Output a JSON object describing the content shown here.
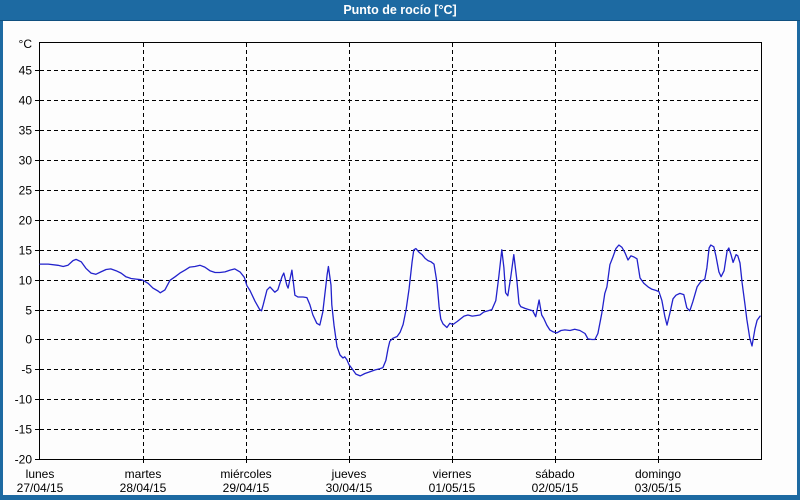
{
  "window": {
    "title": "Punto de rocío [°C]"
  },
  "colors": {
    "frame": "#1d6aa2",
    "titlebar_text": "#ffffff",
    "panel_background": "#fdfdfd",
    "grid": "#000000",
    "series_line": "#2222cc"
  },
  "chart_data": {
    "type": "line",
    "title": "Punto de rocío [°C]",
    "ylabel": "°C",
    "ylim": [
      -20,
      50
    ],
    "y_tick_step": 5,
    "y_ticks": [
      45,
      40,
      35,
      30,
      25,
      20,
      15,
      10,
      5,
      0,
      -5,
      -10,
      -15,
      -20
    ],
    "grid_style": "dashed-black",
    "legend": "none",
    "x_unit": "hours_from_monday_00:00",
    "x_range": [
      0,
      168
    ],
    "x_days": [
      {
        "name": "lunes",
        "date": "27/04/15"
      },
      {
        "name": "martes",
        "date": "28/04/15"
      },
      {
        "name": "miércoles",
        "date": "29/04/15"
      },
      {
        "name": "jueves",
        "date": "30/04/15"
      },
      {
        "name": "viernes",
        "date": "01/05/15"
      },
      {
        "name": "sábado",
        "date": "02/05/15"
      },
      {
        "name": "domingo",
        "date": "03/05/15"
      }
    ],
    "series": [
      {
        "name": "Punto de rocío",
        "color": "#2222cc",
        "points": [
          [
            0,
            12.6
          ],
          [
            1.9,
            12.6
          ],
          [
            4.2,
            12.4
          ],
          [
            5.4,
            12.2
          ],
          [
            6.5,
            12.4
          ],
          [
            7.7,
            13.2
          ],
          [
            8.4,
            13.4
          ],
          [
            9.6,
            13.0
          ],
          [
            10.7,
            11.9
          ],
          [
            11.9,
            11.1
          ],
          [
            13.0,
            10.9
          ],
          [
            14.2,
            11.3
          ],
          [
            15.4,
            11.7
          ],
          [
            16.5,
            11.8
          ],
          [
            17.7,
            11.5
          ],
          [
            18.9,
            11.1
          ],
          [
            20.0,
            10.5
          ],
          [
            21.2,
            10.2
          ],
          [
            22.4,
            10.1
          ],
          [
            23.5,
            10.0
          ],
          [
            24.0,
            9.9
          ],
          [
            25.2,
            9.4
          ],
          [
            26.3,
            8.6
          ],
          [
            27.5,
            8.1
          ],
          [
            28.0,
            7.8
          ],
          [
            29.1,
            8.3
          ],
          [
            30.3,
            9.9
          ],
          [
            31.5,
            10.5
          ],
          [
            32.6,
            11.1
          ],
          [
            33.8,
            11.6
          ],
          [
            34.9,
            12.1
          ],
          [
            36.1,
            12.2
          ],
          [
            37.3,
            12.4
          ],
          [
            38.4,
            12.1
          ],
          [
            39.6,
            11.5
          ],
          [
            40.8,
            11.2
          ],
          [
            41.9,
            11.2
          ],
          [
            43.1,
            11.3
          ],
          [
            44.3,
            11.6
          ],
          [
            45.4,
            11.8
          ],
          [
            46.6,
            11.3
          ],
          [
            47.6,
            10.4
          ],
          [
            48.2,
            9.0
          ],
          [
            48.9,
            8.2
          ],
          [
            50.1,
            6.4
          ],
          [
            51.2,
            5.0
          ],
          [
            51.6,
            4.8
          ],
          [
            52.0,
            5.8
          ],
          [
            52.9,
            8.3
          ],
          [
            53.6,
            8.8
          ],
          [
            54.7,
            7.9
          ],
          [
            55.4,
            8.3
          ],
          [
            56.4,
            10.5
          ],
          [
            56.8,
            11.1
          ],
          [
            57.5,
            9.1
          ],
          [
            57.8,
            8.6
          ],
          [
            58.7,
            11.6
          ],
          [
            59.4,
            7.4
          ],
          [
            60.1,
            7.1
          ],
          [
            61.3,
            7.1
          ],
          [
            62.2,
            7.0
          ],
          [
            62.9,
            5.8
          ],
          [
            63.6,
            4.1
          ],
          [
            64.5,
            2.7
          ],
          [
            65.2,
            2.4
          ],
          [
            65.9,
            4.6
          ],
          [
            66.9,
            10.8
          ],
          [
            67.2,
            12.2
          ],
          [
            67.8,
            9.1
          ],
          [
            68.0,
            5.8
          ],
          [
            68.5,
            2.4
          ],
          [
            69.2,
            -1.2
          ],
          [
            69.9,
            -2.6
          ],
          [
            70.6,
            -3.1
          ],
          [
            71.0,
            -2.9
          ],
          [
            71.5,
            -3.4
          ],
          [
            72.0,
            -4.2
          ],
          [
            72.9,
            -5.1
          ],
          [
            73.6,
            -5.8
          ],
          [
            74.6,
            -6.1
          ],
          [
            75.7,
            -5.7
          ],
          [
            76.9,
            -5.4
          ],
          [
            78.1,
            -5.1
          ],
          [
            79.2,
            -4.9
          ],
          [
            79.9,
            -4.7
          ],
          [
            80.6,
            -3.5
          ],
          [
            81.1,
            -1.5
          ],
          [
            81.5,
            -0.3
          ],
          [
            82.2,
            0.2
          ],
          [
            83.2,
            0.5
          ],
          [
            83.9,
            1.2
          ],
          [
            84.6,
            2.5
          ],
          [
            85.3,
            5.0
          ],
          [
            86.0,
            8.5
          ],
          [
            86.7,
            13.0
          ],
          [
            87.1,
            15.0
          ],
          [
            87.6,
            15.2
          ],
          [
            88.3,
            14.6
          ],
          [
            89.0,
            14.2
          ],
          [
            89.7,
            13.6
          ],
          [
            90.4,
            13.2
          ],
          [
            91.1,
            13.0
          ],
          [
            91.8,
            12.6
          ],
          [
            92.5,
            9.5
          ],
          [
            93.0,
            5.5
          ],
          [
            93.4,
            3.4
          ],
          [
            93.9,
            2.6
          ],
          [
            94.8,
            2.0
          ],
          [
            95.5,
            2.7
          ],
          [
            96.2,
            2.5
          ],
          [
            97.2,
            3.0
          ],
          [
            97.9,
            3.4
          ],
          [
            98.8,
            3.9
          ],
          [
            99.7,
            4.1
          ],
          [
            100.7,
            3.9
          ],
          [
            101.6,
            4.0
          ],
          [
            102.5,
            4.1
          ],
          [
            103.4,
            4.6
          ],
          [
            104.4,
            4.8
          ],
          [
            105.3,
            5.0
          ],
          [
            106.2,
            6.5
          ],
          [
            106.9,
            10.5
          ],
          [
            107.6,
            15.0
          ],
          [
            108.1,
            12.0
          ],
          [
            108.5,
            7.8
          ],
          [
            109.0,
            7.3
          ],
          [
            109.7,
            10.5
          ],
          [
            110.4,
            14.2
          ],
          [
            111.1,
            10.0
          ],
          [
            111.6,
            6.0
          ],
          [
            112.0,
            5.5
          ],
          [
            113.0,
            5.2
          ],
          [
            113.9,
            5.0
          ],
          [
            114.8,
            4.8
          ],
          [
            115.5,
            3.8
          ],
          [
            116.3,
            6.6
          ],
          [
            116.9,
            4.1
          ],
          [
            117.4,
            3.5
          ],
          [
            118.1,
            2.4
          ],
          [
            118.8,
            1.6
          ],
          [
            119.5,
            1.3
          ],
          [
            120.4,
            1.1
          ],
          [
            121.4,
            1.5
          ],
          [
            122.3,
            1.6
          ],
          [
            123.5,
            1.5
          ],
          [
            124.6,
            1.7
          ],
          [
            125.8,
            1.5
          ],
          [
            127.0,
            1.0
          ],
          [
            127.7,
            0.1
          ],
          [
            128.6,
            0.0
          ],
          [
            129.3,
            0.0
          ],
          [
            130.0,
            1.0
          ],
          [
            130.9,
            4.4
          ],
          [
            131.6,
            7.7
          ],
          [
            132.1,
            8.8
          ],
          [
            132.8,
            12.5
          ],
          [
            133.5,
            13.8
          ],
          [
            134.2,
            15.2
          ],
          [
            134.9,
            15.8
          ],
          [
            135.6,
            15.4
          ],
          [
            136.3,
            14.5
          ],
          [
            137.0,
            13.3
          ],
          [
            137.7,
            14.0
          ],
          [
            138.4,
            13.8
          ],
          [
            139.1,
            13.5
          ],
          [
            139.8,
            10.3
          ],
          [
            140.7,
            9.4
          ],
          [
            141.7,
            8.8
          ],
          [
            142.6,
            8.4
          ],
          [
            143.5,
            8.2
          ],
          [
            144.2,
            8.0
          ],
          [
            144.9,
            6.5
          ],
          [
            145.6,
            3.8
          ],
          [
            146.1,
            2.4
          ],
          [
            146.8,
            4.5
          ],
          [
            147.5,
            6.8
          ],
          [
            148.2,
            7.4
          ],
          [
            149.1,
            7.7
          ],
          [
            150.0,
            7.5
          ],
          [
            150.7,
            5.3
          ],
          [
            151.4,
            4.8
          ],
          [
            152.1,
            6.3
          ],
          [
            153.1,
            8.8
          ],
          [
            154.0,
            9.7
          ],
          [
            154.9,
            10.1
          ],
          [
            155.4,
            12.0
          ],
          [
            155.9,
            15.3
          ],
          [
            156.3,
            15.8
          ],
          [
            157.0,
            15.5
          ],
          [
            157.5,
            14.0
          ],
          [
            158.2,
            11.3
          ],
          [
            158.7,
            10.5
          ],
          [
            159.4,
            11.5
          ],
          [
            160.1,
            14.8
          ],
          [
            160.5,
            15.3
          ],
          [
            161.0,
            14.2
          ],
          [
            161.5,
            12.9
          ],
          [
            162.2,
            14.2
          ],
          [
            162.6,
            14.0
          ],
          [
            163.1,
            12.8
          ],
          [
            163.6,
            9.5
          ],
          [
            164.3,
            5.7
          ],
          [
            164.7,
            3.4
          ],
          [
            165.4,
            0.2
          ],
          [
            165.9,
            -1.1
          ],
          [
            166.6,
            1.8
          ],
          [
            167.1,
            3.2
          ],
          [
            167.8,
            3.9
          ]
        ]
      }
    ]
  }
}
